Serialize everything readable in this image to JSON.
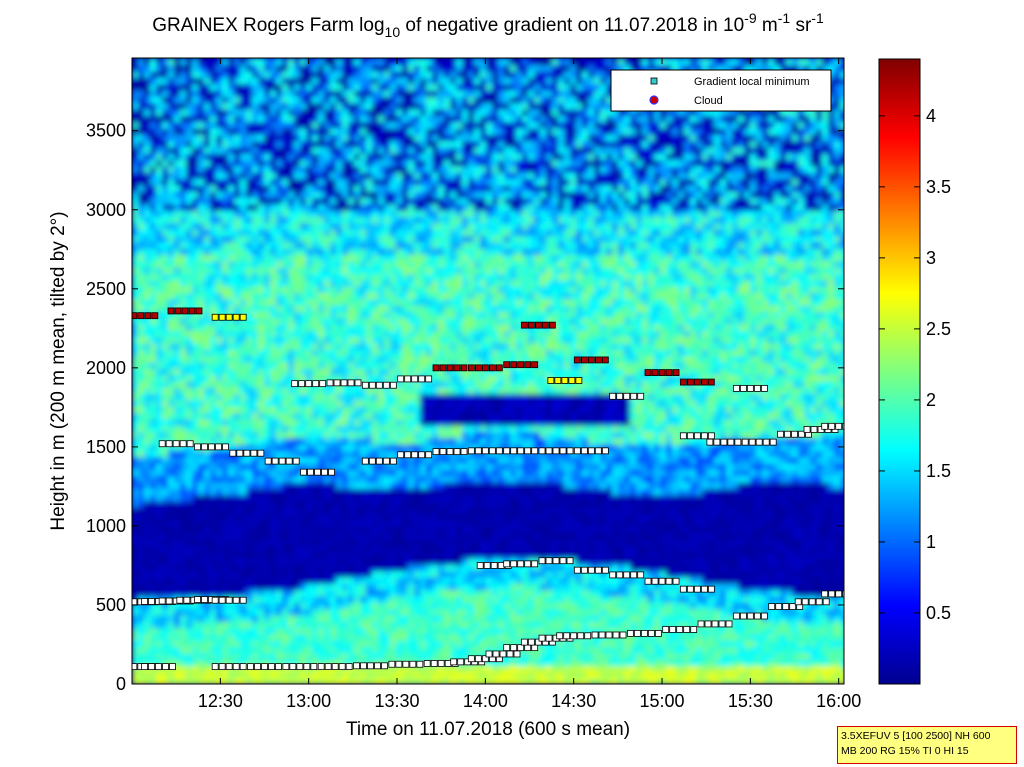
{
  "chart_data": {
    "type": "heatmap",
    "title": {
      "main": "GRAINEX Rogers Farm log",
      "sub": "10",
      "rest": " of negative gradient on 11.07.2018 in 10",
      "exp1": "-9",
      "unit_m": " m",
      "exp2": "-1",
      "unit_sr": " sr",
      "exp3": "-1"
    },
    "xlabel": "Time on 11.07.2018 (600 s mean)",
    "ylabel": "Height in m (200 m mean, tilted by 2°)",
    "x_range_hours": [
      12.0,
      16.03
    ],
    "xticks": [
      {
        "label": "12:30",
        "value": 12.5
      },
      {
        "label": "13:00",
        "value": 13.0
      },
      {
        "label": "13:30",
        "value": 13.5
      },
      {
        "label": "14:00",
        "value": 14.0
      },
      {
        "label": "14:30",
        "value": 14.5
      },
      {
        "label": "15:00",
        "value": 15.0
      },
      {
        "label": "15:30",
        "value": 15.5
      },
      {
        "label": "16:00",
        "value": 16.0
      }
    ],
    "ylim": [
      0,
      3960
    ],
    "yticks": [
      0,
      500,
      1000,
      1500,
      2000,
      2500,
      3000,
      3500
    ],
    "colorbar": {
      "range": [
        0.0,
        4.4
      ],
      "ticks": [
        "0.5",
        "1",
        "1.5",
        "2",
        "2.5",
        "3",
        "3.5",
        "4"
      ],
      "colormap": "jet"
    },
    "legend": {
      "placement": "top-right",
      "entries": [
        {
          "label": "Gradient local minimum",
          "marker": "square",
          "color": "#33cccc"
        },
        {
          "label": "Cloud",
          "marker": "circle",
          "color": "#cc0000"
        }
      ]
    },
    "layers": [
      {
        "name": "blue_band",
        "heights": [
          1030,
          1080,
          1120,
          1180,
          1150,
          1120,
          1180,
          1200,
          1150,
          1110,
          1100,
          1160,
          1180,
          1150
        ],
        "value": 0.15
      },
      {
        "name": "lower_band",
        "heights": [
          520,
          540,
          560,
          600,
          660,
          720,
          760,
          790,
          760,
          720,
          660,
          600,
          560,
          540
        ],
        "value": 2.0
      }
    ],
    "series": [
      {
        "marker": "gradient-minimum",
        "points": [
          [
            12.05,
            520
          ],
          [
            12.15,
            522
          ],
          [
            12.25,
            525
          ],
          [
            12.35,
            530
          ],
          [
            12.45,
            534
          ],
          [
            12.55,
            530
          ],
          [
            12.05,
            110
          ],
          [
            12.15,
            110
          ],
          [
            12.55,
            110
          ],
          [
            12.75,
            110
          ],
          [
            12.95,
            110
          ],
          [
            13.15,
            110
          ],
          [
            13.35,
            115
          ],
          [
            13.55,
            125
          ],
          [
            13.75,
            130
          ],
          [
            13.9,
            140
          ],
          [
            14.0,
            160
          ],
          [
            14.1,
            190
          ],
          [
            14.2,
            230
          ],
          [
            14.3,
            265
          ],
          [
            14.4,
            290
          ],
          [
            14.5,
            305
          ],
          [
            14.7,
            310
          ],
          [
            14.9,
            320
          ],
          [
            15.1,
            345
          ],
          [
            15.3,
            380
          ],
          [
            15.5,
            430
          ],
          [
            15.7,
            490
          ],
          [
            15.85,
            520
          ],
          [
            16.0,
            570
          ],
          [
            12.25,
            1520
          ],
          [
            12.45,
            1500
          ],
          [
            12.65,
            1460
          ],
          [
            12.85,
            1410
          ],
          [
            13.05,
            1340
          ],
          [
            13.4,
            1410
          ],
          [
            13.6,
            1450
          ],
          [
            13.8,
            1470
          ],
          [
            14.0,
            1475
          ],
          [
            14.2,
            1475
          ],
          [
            14.4,
            1475
          ],
          [
            14.6,
            1475
          ],
          [
            15.2,
            1570
          ],
          [
            15.35,
            1530
          ],
          [
            15.55,
            1530
          ],
          [
            15.75,
            1580
          ],
          [
            15.9,
            1610
          ],
          [
            16.0,
            1630
          ],
          [
            12.05,
            2330
          ],
          [
            12.3,
            2360
          ],
          [
            12.55,
            2320
          ],
          [
            13.0,
            1900
          ],
          [
            13.2,
            1905
          ],
          [
            13.4,
            1890
          ],
          [
            13.6,
            1930
          ],
          [
            14.05,
            750
          ],
          [
            14.2,
            760
          ],
          [
            14.4,
            780
          ],
          [
            14.6,
            720
          ],
          [
            14.8,
            690
          ],
          [
            15.0,
            650
          ],
          [
            15.2,
            600
          ],
          [
            13.8,
            2000
          ],
          [
            14.0,
            2000
          ],
          [
            14.2,
            2020
          ],
          [
            14.45,
            1920
          ],
          [
            14.6,
            2050
          ],
          [
            14.8,
            1820
          ],
          [
            15.0,
            1970
          ],
          [
            15.2,
            1910
          ],
          [
            15.5,
            1870
          ],
          [
            14.3,
            2270
          ]
        ]
      }
    ]
  },
  "infobox": {
    "line1": "3.5XEFUV 5 [100 2500] NH 600",
    "line2": "MB 200 RG 15% TI 0 HI 15"
  },
  "colors": {
    "background": "#00008f",
    "cloud_marker": "#b00000",
    "minimum_marker": "#ffffff",
    "yellow_marker": "#ffff00"
  }
}
